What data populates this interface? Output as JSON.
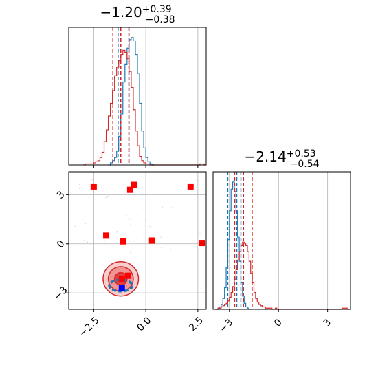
{
  "colors": {
    "red": "#d62728",
    "red_strong": "#ff0000",
    "blue": "#1f77b4",
    "blue_marker": "#0000ff",
    "grid": "#b0b0b0"
  },
  "chart_data": [
    {
      "type": "histogram",
      "panel": "top-left",
      "title": {
        "median": "−1.20",
        "upper": "+0.39",
        "lower": "−0.38"
      },
      "x_range": [
        -3.7,
        2.9
      ],
      "x_ticks": [
        -2.5,
        0.0,
        2.5
      ],
      "x_tick_labels": [],
      "bin_width": 0.1,
      "series": [
        {
          "name": "",
          "color": "#1f77b4",
          "quantiles": [
            -1.33,
            -1.2,
            -0.81
          ],
          "bins_start": -1.8,
          "counts": [
            0,
            2,
            4,
            7,
            13,
            27,
            48,
            78,
            95,
            110,
            118,
            120,
            117,
            104,
            86,
            58,
            32,
            16,
            7,
            3,
            1,
            0
          ]
        },
        {
          "name": "",
          "color": "#d62728",
          "quantiles": [
            -1.58,
            -1.2,
            -0.81
          ],
          "bins_start": -3.0,
          "counts": [
            0,
            1,
            1,
            1,
            1,
            2,
            3,
            4,
            7,
            12,
            22,
            33,
            46,
            58,
            70,
            84,
            92,
            98,
            104,
            108,
            106,
            100,
            88,
            73,
            52,
            32,
            18,
            8,
            4,
            2,
            1,
            1,
            0,
            0,
            0,
            0,
            0,
            0,
            0,
            0,
            0,
            0,
            0,
            0,
            0,
            0,
            0,
            0,
            0,
            0,
            0,
            0,
            0,
            0,
            0,
            0,
            1,
            1,
            0
          ]
        }
      ]
    },
    {
      "type": "scatter",
      "panel": "bottom-left",
      "x_range": [
        -3.7,
        2.9
      ],
      "y_range": [
        -4.0,
        4.4
      ],
      "x_ticks": [
        -2.5,
        0.0,
        2.5
      ],
      "x_tick_labels": [
        "−2.5",
        "0.0",
        "2.5"
      ],
      "y_ticks": [
        -3,
        0,
        3
      ],
      "y_tick_labels": [
        "−3",
        "0",
        "3"
      ],
      "contours_red": [
        {
          "center": [
            -1.2,
            -2.14
          ],
          "radius": [
            0.3,
            0.38
          ],
          "level": 0.39
        },
        {
          "center": [
            -1.2,
            -2.14
          ],
          "radius": [
            0.6,
            0.75
          ],
          "level": 0.86
        },
        {
          "center": [
            -1.2,
            -2.14
          ],
          "radius": [
            0.85,
            1.05
          ],
          "level": 0.99
        }
      ],
      "contours_blue": [
        {
          "center": [
            -1.2,
            -2.55
          ],
          "radius": [
            0.55,
            0.35
          ],
          "level": 0.86
        }
      ],
      "points_red": [
        [
          -2.5,
          3.5
        ],
        [
          -0.55,
          3.6
        ],
        [
          -0.75,
          3.3
        ],
        [
          2.15,
          3.5
        ],
        [
          2.7,
          0.05
        ],
        [
          -1.9,
          0.5
        ],
        [
          -1.1,
          0.15
        ],
        [
          0.3,
          0.2
        ],
        [
          -0.85,
          -1.95
        ],
        [
          -1.15,
          -2.15
        ]
      ],
      "points_blue": [
        [
          -1.15,
          -2.7
        ]
      ]
    },
    {
      "type": "histogram",
      "panel": "bottom-right",
      "title": {
        "median": "−2.14",
        "upper": "+0.53",
        "lower": "−0.54"
      },
      "x_range": [
        -4.0,
        4.4
      ],
      "x_ticks": [
        -3,
        0,
        3
      ],
      "x_tick_labels": [
        "−3",
        "0",
        "3"
      ],
      "bin_width": 0.1,
      "series": [
        {
          "name": "",
          "color": "#1f77b4",
          "quantiles": [
            -3.1,
            -2.55,
            -2.3
          ],
          "bins_start": -3.8,
          "counts": [
            0,
            1,
            2,
            4,
            9,
            18,
            35,
            58,
            82,
            100,
            106,
            98,
            82,
            60,
            40,
            22,
            11,
            5,
            2,
            1,
            0
          ]
        },
        {
          "name": "",
          "color": "#d62728",
          "quantiles": [
            -2.68,
            -2.14,
            -1.61
          ],
          "bins_start": -3.8,
          "counts": [
            0,
            1,
            1,
            2,
            3,
            4,
            5,
            7,
            10,
            14,
            19,
            25,
            33,
            41,
            48,
            53,
            56,
            55,
            53,
            48,
            40,
            30,
            22,
            14,
            9,
            6,
            4,
            3,
            2,
            2,
            1,
            1,
            1,
            1,
            0,
            0,
            1,
            0,
            0,
            0,
            0,
            0,
            0,
            0,
            0,
            0,
            0,
            0,
            0,
            0,
            0,
            0,
            0,
            0,
            0,
            0,
            0,
            0,
            0,
            0,
            0,
            0,
            0,
            0,
            0,
            0,
            0,
            0,
            0,
            0,
            0,
            0,
            0,
            0,
            0,
            0,
            0,
            1,
            1,
            1,
            0
          ]
        }
      ]
    }
  ]
}
